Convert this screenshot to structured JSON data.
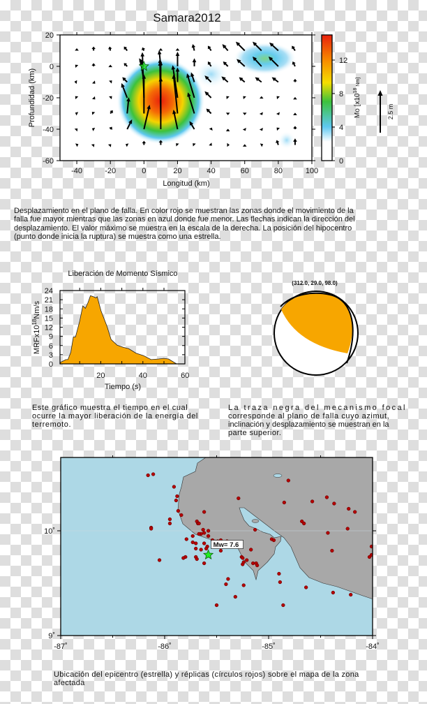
{
  "slip_figure": {
    "title": "Samara2012",
    "caption_lines": [
      "Desplazamiento en el plano de falla.  En color rojo se muestran las zonas donde el movimiento de la",
      "falla fue mayor mientras que las zonas en azul donde fue menor.  Las flechas indican la dirección del",
      "desplazamiento.  El valor máximo se muestra en la escala de la derecha.  La posición del hipocentro",
      "(punto donde inicia la ruptura) se muestra como una estrella."
    ]
  },
  "mrf_figure": {
    "caption_lines": [
      "Este gráfico muestra el tiempo en el cual",
      "ocurre la mayor liberación de la energía del",
      "terremoto."
    ]
  },
  "mechanism_figure": {
    "label": "(312.0,  29.0,  98.0)",
    "fill_color": "#f7a600",
    "caption_lines": [
      "La traza negra del mecanismo focal",
      "corresponde al plano de falla cuyo azimut,",
      "inclinación y desplazamiento se muestran en la",
      "parte superior."
    ]
  },
  "map_figure": {
    "caption_lines": [
      "Ubicación del epicentro (estrella) y réplicas (círculos rojos) sobre el mapa de la zona",
      "afectada"
    ]
  },
  "chart_data": [
    {
      "type": "heatmap",
      "title": "Samara2012",
      "xlabel": "Longitud (km)",
      "ylabel": "Profundidad (km)",
      "xlim": [
        -50,
        100
      ],
      "ylim": [
        -60,
        20
      ],
      "xticks": [
        "-40",
        "-20",
        "0",
        "20",
        "40",
        "60",
        "80",
        "100"
      ],
      "yticks": [
        "20",
        "0",
        "-20",
        "-40",
        "-60"
      ],
      "colorbar": {
        "label": "Mo [x10",
        "label_exp": "18",
        "label_unit": " Nm]",
        "range": [
          0,
          15
        ],
        "ticks": [
          "0",
          "4",
          "8",
          "12"
        ],
        "colors": [
          "#ffffff",
          "#bfe6f7",
          "#5ec8f0",
          "#3cc23c",
          "#f5de00",
          "#f78a00",
          "#e8200c"
        ]
      },
      "scale_arrow": {
        "label": "2.5 m",
        "value_m": 2.5
      },
      "hypocenter": {
        "x": 0,
        "y": 0,
        "color": "#22dd22"
      },
      "slip_patches": [
        {
          "x": 10,
          "y": -22,
          "peak": 14,
          "rx_km": 25,
          "ry_km": 24
        },
        {
          "x": 72,
          "y": 5,
          "peak": 5,
          "rx_km": 18,
          "ry_km": 9
        },
        {
          "x": 40,
          "y": -5,
          "peak": 3,
          "rx_km": 10,
          "ry_km": 8
        },
        {
          "x": 85,
          "y": -47,
          "peak": 2.5,
          "rx_km": 5,
          "ry_km": 5
        }
      ],
      "arrow_grid": {
        "x": [
          -40,
          -30,
          -20,
          -10,
          0,
          10,
          20,
          30,
          40,
          50,
          60,
          70,
          80,
          90
        ],
        "y": [
          10,
          0,
          -10,
          -20,
          -30,
          -40,
          -50
        ],
        "vectors_m": [
          [
            [
              0,
              0.15
            ],
            [
              0,
              0.25
            ],
            [
              -0.05,
              0.25
            ],
            [
              -0.2,
              0.25
            ],
            [
              -0.1,
              0.2
            ],
            [
              0,
              0.15
            ],
            [
              0,
              0.15
            ],
            [
              -0.1,
              0.4
            ],
            [
              -0.2,
              0.3
            ],
            [
              -0.35,
              0.4
            ],
            [
              -0.55,
              0.55
            ],
            [
              -0.55,
              0.55
            ],
            [
              -0.55,
              0.5
            ],
            [
              -0.2,
              0.3
            ]
          ],
          [
            [
              -0.1,
              0.1
            ],
            [
              0,
              0.2
            ],
            [
              0,
              0.1
            ],
            [
              -0.2,
              0.2
            ],
            [
              -0.3,
              0.5
            ],
            [
              -0.1,
              1.0
            ],
            [
              0,
              0.9
            ],
            [
              0,
              0.5
            ],
            [
              -0.2,
              0.3
            ],
            [
              -0.3,
              0.3
            ],
            [
              -0.5,
              0.45
            ],
            [
              -0.55,
              0.6
            ],
            [
              -0.6,
              0.6
            ],
            [
              -0.15,
              0.3
            ]
          ],
          [
            [
              -0.15,
              0.02
            ],
            [
              0.1,
              -0.1
            ],
            [
              0.1,
              0.1
            ],
            [
              -0.3,
              0.3
            ],
            [
              -0.2,
              1.3
            ],
            [
              0,
              1.3
            ],
            [
              0,
              0.9
            ],
            [
              -0.2,
              0.6
            ],
            [
              -0.4,
              0.4
            ],
            [
              -0.4,
              0.35
            ],
            [
              -0.35,
              0.3
            ],
            [
              -0.4,
              0.3
            ],
            [
              -0.4,
              0.3
            ],
            [
              0,
              0.2
            ]
          ],
          [
            [
              -0.1,
              0.1
            ],
            [
              0.1,
              -0.1
            ],
            [
              0.1,
              0.1
            ],
            [
              -0.35,
              0.9
            ],
            [
              -0.1,
              2.8
            ],
            [
              -0.05,
              2.4
            ],
            [
              -0.3,
              2.0
            ],
            [
              -0.45,
              1.5
            ],
            [
              -0.4,
              0.4
            ],
            [
              -0.1,
              0.1
            ],
            [
              -0.1,
              0.1
            ],
            [
              0,
              0.1
            ],
            [
              -0.1,
              0.1
            ],
            [
              0,
              0.05
            ]
          ],
          [
            [
              -0.1,
              0.05
            ],
            [
              -0.1,
              0.1
            ],
            [
              0.15,
              0.2
            ],
            [
              0.1,
              1.0
            ],
            [
              0,
              2.4
            ],
            [
              -0.05,
              3.2
            ],
            [
              -0.25,
              2.4
            ],
            [
              -0.4,
              1.3
            ],
            [
              -0.3,
              0.3
            ],
            [
              0,
              -0.1
            ],
            [
              0,
              -0.1
            ],
            [
              0.05,
              -0.1
            ],
            [
              0.05,
              -0.1
            ],
            [
              0,
              0.05
            ]
          ],
          [
            [
              0.05,
              0.05
            ],
            [
              -0.1,
              0.05
            ],
            [
              0.1,
              0.15
            ],
            [
              0.3,
              0.6
            ],
            [
              0.35,
              1.5
            ],
            [
              0,
              3.2
            ],
            [
              -0.25,
              1.2
            ],
            [
              -0.3,
              0.5
            ],
            [
              0.05,
              0.1
            ],
            [
              0,
              0.02
            ],
            [
              0.05,
              -0.1
            ],
            [
              0.05,
              -0.1
            ],
            [
              -0.1,
              0.1
            ],
            [
              0,
              0.2
            ]
          ],
          [
            [
              0.1,
              0.05
            ],
            [
              0.05,
              0.05
            ],
            [
              0.05,
              0.05
            ],
            [
              -0.1,
              0.05
            ],
            [
              0,
              0.25
            ],
            [
              0,
              0.3
            ],
            [
              -0.1,
              0.1
            ],
            [
              -0.1,
              0.1
            ],
            [
              0.05,
              -0.05
            ],
            [
              0.1,
              0
            ],
            [
              0,
              0.05
            ],
            [
              0.1,
              0.05
            ],
            [
              -0.1,
              0.3
            ],
            [
              0,
              0.4
            ]
          ]
        ]
      }
    },
    {
      "type": "area",
      "title": "Liberación de Momento Sísmico",
      "xlabel": "Tiempo (s)",
      "ylabel": "MRFx10",
      "ylabel_exp": "18",
      "ylabel_unit": "Nm/s",
      "xlim": [
        0,
        60
      ],
      "ylim": [
        0,
        24
      ],
      "xticks": [
        "20",
        "40",
        "60"
      ],
      "yticks": [
        "0",
        "3",
        "6",
        "9",
        "12",
        "15",
        "18",
        "21",
        "24"
      ],
      "color": "#f7a600",
      "x": [
        0.8,
        3.4,
        4.4,
        5.8,
        7,
        8,
        10,
        11.5,
        12.7,
        13.9,
        15.1,
        16.5,
        17.7,
        18.3,
        20.1,
        23,
        24.9,
        27.8,
        30.8,
        33.2,
        36.8,
        40.3,
        43.9,
        47.5,
        49.9,
        52.2,
        55.8
      ],
      "y": [
        0.45,
        1.4,
        1.4,
        3.8,
        8.8,
        8.8,
        14,
        19,
        18.2,
        20,
        22.3,
        22,
        21.6,
        22,
        17.4,
        12.2,
        8,
        6.1,
        5.4,
        5,
        3.5,
        2.7,
        1.4,
        1.6,
        1.8,
        1.6,
        0.1
      ]
    },
    {
      "type": "scatter",
      "xlim": [
        -87,
        -84
      ],
      "ylim": [
        9,
        10.7
      ],
      "xticks": [
        "-87˚",
        "-86˚",
        "-85˚",
        "-84˚"
      ],
      "yticks": [
        "9˚",
        "10˚"
      ],
      "sea_color": "#add8e6",
      "land_color": "#a8a8a8",
      "aftershock_color": "#b30000",
      "epicenter": {
        "lon": -85.58,
        "lat": 9.77,
        "label": "Mw= 7.6",
        "color": "#22ee22"
      },
      "aftershocks": [
        [
          -85.91,
          10.42
        ],
        [
          -85.88,
          10.33
        ],
        [
          -85.89,
          10.29
        ],
        [
          -85.87,
          10.19
        ],
        [
          -85.84,
          10.15
        ],
        [
          -85.95,
          10.11
        ],
        [
          -85.95,
          10.07
        ],
        [
          -85.62,
          10.18
        ],
        [
          -85.29,
          10.31
        ],
        [
          -84.81,
          10.48
        ],
        [
          -84.85,
          10.27
        ],
        [
          -84.58,
          10.28
        ],
        [
          -84.44,
          10.32
        ],
        [
          -84.37,
          10.26
        ],
        [
          -84.23,
          10.21
        ],
        [
          -84.17,
          10.18
        ],
        [
          -84.68,
          10.09
        ],
        [
          -84.66,
          10.07
        ],
        [
          -84.24,
          10.02
        ],
        [
          -84.43,
          9.98
        ],
        [
          -84.01,
          9.85
        ],
        [
          -84.03,
          9.75
        ],
        [
          -84.01,
          9.77
        ],
        [
          -84.39,
          9.81
        ],
        [
          -85.13,
          10.01
        ],
        [
          -84.97,
          9.92
        ],
        [
          -84.95,
          9.91
        ],
        [
          -85.17,
          9.82
        ],
        [
          -85.69,
          10.09
        ],
        [
          -85.68,
          10.07
        ],
        [
          -85.67,
          10.07
        ],
        [
          -85.63,
          10.01
        ],
        [
          -85.65,
          9.97
        ],
        [
          -85.62,
          9.98
        ],
        [
          -85.58,
          10.0
        ],
        [
          -85.58,
          9.95
        ],
        [
          -85.67,
          9.97
        ],
        [
          -85.79,
          9.92
        ],
        [
          -85.73,
          9.95
        ],
        [
          -85.73,
          9.89
        ],
        [
          -85.7,
          9.88
        ],
        [
          -85.7,
          9.83
        ],
        [
          -85.62,
          9.88
        ],
        [
          -85.59,
          9.85
        ],
        [
          -85.6,
          9.83
        ],
        [
          -85.54,
          9.91
        ],
        [
          -85.49,
          9.9
        ],
        [
          -85.46,
          9.91
        ],
        [
          -85.4,
          9.9
        ],
        [
          -85.35,
          9.89
        ],
        [
          -85.46,
          9.81
        ],
        [
          -85.65,
          9.82
        ],
        [
          -85.8,
          9.75
        ],
        [
          -85.82,
          9.74
        ],
        [
          -85.7,
          9.75
        ],
        [
          -85.69,
          9.73
        ],
        [
          -85.62,
          9.69
        ],
        [
          -85.26,
          9.75
        ],
        [
          -85.25,
          9.74
        ],
        [
          -85.25,
          9.68
        ],
        [
          -85.24,
          9.7
        ],
        [
          -85.21,
          9.72
        ],
        [
          -85.15,
          9.69
        ],
        [
          -85.12,
          9.69
        ],
        [
          -85.11,
          9.67
        ],
        [
          -85.39,
          9.54
        ],
        [
          -85.41,
          9.49
        ],
        [
          -85.24,
          9.48
        ],
        [
          -85.32,
          9.37
        ],
        [
          -84.9,
          9.59
        ],
        [
          -84.89,
          9.51
        ],
        [
          -84.64,
          9.46
        ],
        [
          -84.38,
          9.41
        ],
        [
          -84.21,
          9.39
        ],
        [
          -86.16,
          10.53
        ],
        [
          -86.11,
          10.54
        ],
        [
          -86.05,
          9.72
        ],
        [
          -86.13,
          10.03
        ],
        [
          -86.13,
          10.02
        ],
        [
          -85.5,
          9.29
        ],
        [
          -84.86,
          9.29
        ]
      ]
    }
  ]
}
